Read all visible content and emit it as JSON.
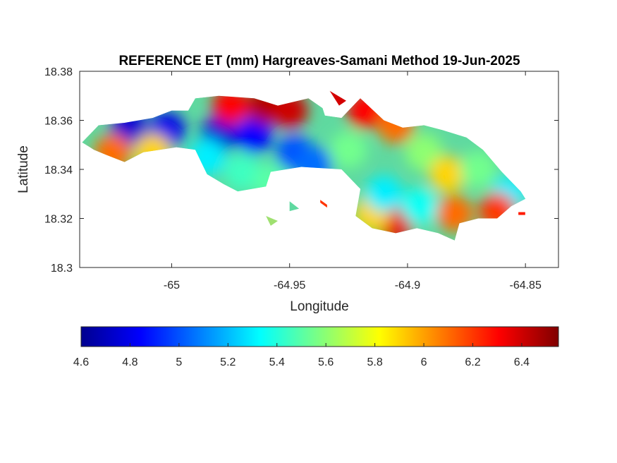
{
  "chart_data": {
    "type": "heatmap",
    "title": "REFERENCE ET (mm) Hargreaves-Samani Method  19-Jun-2025",
    "xlabel": "Longitude",
    "ylabel": "Latitude",
    "xlim": [
      -65.039,
      -64.836
    ],
    "ylim": [
      18.3,
      18.38
    ],
    "x_ticks": [
      -65,
      -64.95,
      -64.9,
      -64.85
    ],
    "x_tick_labels": [
      "-65",
      "-64.95",
      "-64.9",
      "-64.85"
    ],
    "y_ticks": [
      18.3,
      18.32,
      18.34,
      18.36,
      18.38
    ],
    "y_tick_labels": [
      "18.3",
      "18.32",
      "18.34",
      "18.36",
      "18.38"
    ],
    "colorbar": {
      "colormap": "jet",
      "range": [
        4.6,
        6.55
      ],
      "ticks": [
        4.6,
        4.8,
        5,
        5.2,
        5.4,
        5.6,
        5.8,
        6,
        6.2,
        6.4
      ],
      "tick_labels": [
        "4.6",
        "4.8",
        "5",
        "5.2",
        "5.4",
        "5.6",
        "5.8",
        "6",
        "6.2",
        "6.4"
      ],
      "orientation": "horizontal",
      "placement": "below"
    },
    "grid": false,
    "island_outline": [
      [
        -65.038,
        18.351
      ],
      [
        -65.031,
        18.358
      ],
      [
        -65.02,
        18.359
      ],
      [
        -65.008,
        18.361
      ],
      [
        -65.0,
        18.364
      ],
      [
        -64.993,
        18.364
      ],
      [
        -64.99,
        18.369
      ],
      [
        -64.98,
        18.37
      ],
      [
        -64.965,
        18.369
      ],
      [
        -64.955,
        18.366
      ],
      [
        -64.942,
        18.369
      ],
      [
        -64.936,
        18.365
      ],
      [
        -64.935,
        18.362
      ],
      [
        -64.928,
        18.361
      ],
      [
        -64.92,
        18.369
      ],
      [
        -64.91,
        18.36
      ],
      [
        -64.902,
        18.357
      ],
      [
        -64.893,
        18.358
      ],
      [
        -64.885,
        18.356
      ],
      [
        -64.875,
        18.353
      ],
      [
        -64.868,
        18.348
      ],
      [
        -64.86,
        18.339
      ],
      [
        -64.852,
        18.331
      ],
      [
        -64.85,
        18.328
      ],
      [
        -64.856,
        18.325
      ],
      [
        -64.862,
        18.32
      ],
      [
        -64.87,
        18.32
      ],
      [
        -64.878,
        18.318
      ],
      [
        -64.88,
        18.311
      ],
      [
        -64.887,
        18.314
      ],
      [
        -64.896,
        18.316
      ],
      [
        -64.905,
        18.314
      ],
      [
        -64.915,
        18.316
      ],
      [
        -64.922,
        18.321
      ],
      [
        -64.92,
        18.332
      ],
      [
        -64.928,
        18.34
      ],
      [
        -64.945,
        18.341
      ],
      [
        -64.958,
        18.339
      ],
      [
        -64.96,
        18.333
      ],
      [
        -64.972,
        18.331
      ],
      [
        -64.978,
        18.334
      ],
      [
        -64.985,
        18.338
      ],
      [
        -64.99,
        18.348
      ],
      [
        -64.998,
        18.349
      ],
      [
        -65.012,
        18.347
      ],
      [
        -65.02,
        18.343
      ],
      [
        -65.028,
        18.346
      ],
      [
        -65.033,
        18.348
      ]
    ],
    "islets": [
      [
        [
          -64.933,
          18.372
        ],
        [
          -64.926,
          18.368
        ],
        [
          -64.929,
          18.366
        ]
      ],
      [
        [
          -64.96,
          18.321
        ],
        [
          -64.958,
          18.317
        ],
        [
          -64.955,
          18.319
        ]
      ],
      [
        [
          -64.95,
          18.327
        ],
        [
          -64.946,
          18.324
        ],
        [
          -64.95,
          18.323
        ]
      ],
      [
        [
          -64.937,
          18.327
        ],
        [
          -64.935,
          18.325
        ]
      ],
      [
        [
          -64.853,
          18.322
        ],
        [
          -64.851,
          18.322
        ]
      ]
    ],
    "value_field_samples": [
      {
        "lon": -65.018,
        "lat": 18.357,
        "value": 4.75
      },
      {
        "lon": -65.002,
        "lat": 18.356,
        "value": 4.8
      },
      {
        "lon": -64.98,
        "lat": 18.354,
        "value": 4.75
      },
      {
        "lon": -64.965,
        "lat": 18.354,
        "value": 4.85
      },
      {
        "lon": -64.948,
        "lat": 18.347,
        "value": 5.0
      },
      {
        "lon": -64.94,
        "lat": 18.342,
        "value": 5.05
      },
      {
        "lon": -64.975,
        "lat": 18.366,
        "value": 6.3
      },
      {
        "lon": -64.96,
        "lat": 18.366,
        "value": 6.45
      },
      {
        "lon": -64.95,
        "lat": 18.364,
        "value": 6.4
      },
      {
        "lon": -64.918,
        "lat": 18.364,
        "value": 6.3
      },
      {
        "lon": -64.905,
        "lat": 18.358,
        "value": 6.1
      },
      {
        "lon": -64.893,
        "lat": 18.347,
        "value": 5.6
      },
      {
        "lon": -64.883,
        "lat": 18.338,
        "value": 5.9
      },
      {
        "lon": -64.87,
        "lat": 18.34,
        "value": 5.55
      },
      {
        "lon": -64.857,
        "lat": 18.33,
        "value": 5.3
      },
      {
        "lon": -64.862,
        "lat": 18.323,
        "value": 6.2
      },
      {
        "lon": -64.88,
        "lat": 18.322,
        "value": 6.1
      },
      {
        "lon": -64.905,
        "lat": 18.318,
        "value": 6.35
      },
      {
        "lon": -64.915,
        "lat": 18.322,
        "value": 5.9
      },
      {
        "lon": -64.91,
        "lat": 18.33,
        "value": 5.3
      },
      {
        "lon": -64.895,
        "lat": 18.325,
        "value": 5.35
      },
      {
        "lon": -64.925,
        "lat": 18.348,
        "value": 5.55
      },
      {
        "lon": -65.025,
        "lat": 18.347,
        "value": 6.1
      },
      {
        "lon": -65.008,
        "lat": 18.347,
        "value": 5.9
      },
      {
        "lon": -64.97,
        "lat": 18.339,
        "value": 5.45
      },
      {
        "lon": -64.985,
        "lat": 18.345,
        "value": 5.3
      },
      {
        "lon": -64.958,
        "lat": 18.335,
        "value": 5.5
      }
    ]
  }
}
